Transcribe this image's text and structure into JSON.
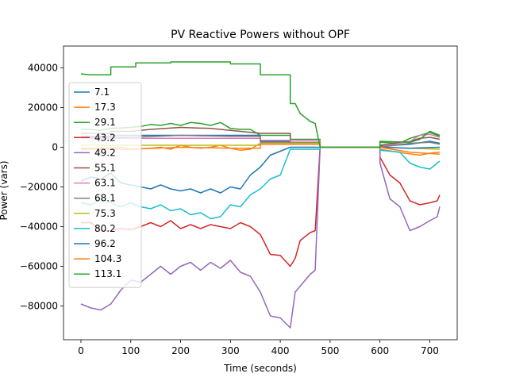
{
  "chart_data": {
    "type": "line",
    "title": "PV Reactive Powers without OPF",
    "xlabel": "Time (seconds)",
    "ylabel": "Power (vars)",
    "xlim": [
      -35,
      755
    ],
    "ylim": [
      -97000,
      51000
    ],
    "xticks": [
      0,
      100,
      200,
      300,
      400,
      500,
      600,
      700
    ],
    "yticks": [
      -80000,
      -60000,
      -40000,
      -20000,
      0,
      20000,
      40000
    ],
    "xtick_labels": [
      "0",
      "100",
      "200",
      "300",
      "400",
      "500",
      "600",
      "700"
    ],
    "ytick_labels": [
      "−80000",
      "−60000",
      "−40000",
      "−20000",
      "0",
      "20000",
      "40000"
    ],
    "grid": false,
    "legend_position": "upper-left",
    "series": [
      {
        "name": "7.1",
        "color": "#1f77b4",
        "points": [
          [
            0,
            5500
          ],
          [
            60,
            5500
          ],
          [
            60,
            6000
          ],
          [
            360,
            6000
          ],
          [
            360,
            3000
          ],
          [
            420,
            3000
          ],
          [
            420,
            1500
          ],
          [
            480,
            1500
          ],
          [
            480,
            0
          ],
          [
            600,
            0
          ],
          [
            600,
            500
          ],
          [
            660,
            1500
          ],
          [
            700,
            3000
          ],
          [
            720,
            2000
          ]
        ]
      },
      {
        "name": "17.3",
        "color": "#ff7f0e",
        "points": [
          [
            0,
            -500
          ],
          [
            50,
            -500
          ],
          [
            80,
            0
          ],
          [
            100,
            -1000
          ],
          [
            140,
            -500
          ],
          [
            160,
            0
          ],
          [
            180,
            -1000
          ],
          [
            200,
            1000
          ],
          [
            220,
            0
          ],
          [
            240,
            -500
          ],
          [
            260,
            0
          ],
          [
            280,
            1000
          ],
          [
            300,
            -500
          ],
          [
            320,
            -1500
          ],
          [
            340,
            -1000
          ],
          [
            360,
            2000
          ],
          [
            400,
            2000
          ],
          [
            420,
            2500
          ],
          [
            480,
            2500
          ],
          [
            480,
            0
          ],
          [
            600,
            0
          ],
          [
            600,
            -1000
          ],
          [
            650,
            -3000
          ],
          [
            680,
            -4000
          ],
          [
            700,
            -3000
          ],
          [
            720,
            -2500
          ]
        ]
      },
      {
        "name": "29.1",
        "color": "#2ca02c",
        "points": [
          [
            0,
            9000
          ],
          [
            20,
            9000
          ],
          [
            40,
            8500
          ],
          [
            60,
            9500
          ],
          [
            100,
            10000
          ],
          [
            120,
            10500
          ],
          [
            140,
            11500
          ],
          [
            160,
            11000
          ],
          [
            180,
            12000
          ],
          [
            200,
            11000
          ],
          [
            220,
            12500
          ],
          [
            240,
            12000
          ],
          [
            260,
            11000
          ],
          [
            280,
            12500
          ],
          [
            300,
            9500
          ],
          [
            320,
            9000
          ],
          [
            340,
            9000
          ],
          [
            360,
            6000
          ],
          [
            420,
            6000
          ],
          [
            420,
            4000
          ],
          [
            480,
            4000
          ],
          [
            480,
            0
          ],
          [
            600,
            0
          ],
          [
            600,
            2500
          ],
          [
            640,
            2000
          ],
          [
            660,
            4500
          ],
          [
            680,
            6000
          ],
          [
            700,
            7500
          ],
          [
            720,
            5500
          ]
        ]
      },
      {
        "name": "43.2",
        "color": "#d62728",
        "points": [
          [
            0,
            -38000
          ],
          [
            20,
            -38000
          ],
          [
            40,
            -42000
          ],
          [
            60,
            -42000
          ],
          [
            80,
            -41000
          ],
          [
            100,
            -41500
          ],
          [
            120,
            -40000
          ],
          [
            140,
            -38000
          ],
          [
            160,
            -40000
          ],
          [
            180,
            -37000
          ],
          [
            200,
            -41000
          ],
          [
            220,
            -39000
          ],
          [
            240,
            -41000
          ],
          [
            260,
            -39000
          ],
          [
            280,
            -40000
          ],
          [
            300,
            -41000
          ],
          [
            320,
            -38000
          ],
          [
            340,
            -40000
          ],
          [
            360,
            -44000
          ],
          [
            380,
            -54000
          ],
          [
            400,
            -54500
          ],
          [
            420,
            -60000
          ],
          [
            430,
            -56000
          ],
          [
            440,
            -47000
          ],
          [
            460,
            -43000
          ],
          [
            470,
            -42000
          ],
          [
            480,
            0
          ],
          [
            600,
            0
          ],
          [
            600,
            -5000
          ],
          [
            620,
            -14000
          ],
          [
            640,
            -18000
          ],
          [
            660,
            -27000
          ],
          [
            680,
            -29000
          ],
          [
            700,
            -28000
          ],
          [
            715,
            -27000
          ],
          [
            720,
            -24000
          ]
        ]
      },
      {
        "name": "49.2",
        "color": "#9467bd",
        "points": [
          [
            0,
            -79000
          ],
          [
            20,
            -81000
          ],
          [
            40,
            -82000
          ],
          [
            60,
            -79000
          ],
          [
            80,
            -72000
          ],
          [
            100,
            -67000
          ],
          [
            120,
            -68000
          ],
          [
            140,
            -64000
          ],
          [
            160,
            -60000
          ],
          [
            180,
            -64000
          ],
          [
            200,
            -60000
          ],
          [
            220,
            -58000
          ],
          [
            240,
            -62000
          ],
          [
            260,
            -58000
          ],
          [
            280,
            -61000
          ],
          [
            300,
            -57000
          ],
          [
            320,
            -63000
          ],
          [
            340,
            -65000
          ],
          [
            360,
            -73000
          ],
          [
            380,
            -85000
          ],
          [
            400,
            -86000
          ],
          [
            420,
            -91000
          ],
          [
            430,
            -73000
          ],
          [
            440,
            -70000
          ],
          [
            460,
            -64000
          ],
          [
            470,
            -62000
          ],
          [
            480,
            0
          ],
          [
            600,
            0
          ],
          [
            600,
            -8000
          ],
          [
            620,
            -26000
          ],
          [
            640,
            -30000
          ],
          [
            660,
            -42000
          ],
          [
            680,
            -40000
          ],
          [
            700,
            -37000
          ],
          [
            715,
            -35000
          ],
          [
            720,
            -30000
          ]
        ]
      },
      {
        "name": "55.1",
        "color": "#8c564b",
        "points": [
          [
            0,
            7000
          ],
          [
            60,
            7000
          ],
          [
            60,
            8000
          ],
          [
            100,
            8000
          ],
          [
            140,
            9000
          ],
          [
            200,
            10000
          ],
          [
            260,
            9500
          ],
          [
            300,
            8500
          ],
          [
            360,
            7000
          ],
          [
            420,
            7000
          ],
          [
            420,
            1500
          ],
          [
            480,
            1500
          ],
          [
            480,
            0
          ],
          [
            600,
            0
          ],
          [
            600,
            1000
          ],
          [
            660,
            3000
          ],
          [
            680,
            4500
          ],
          [
            700,
            5000
          ],
          [
            720,
            4000
          ]
        ]
      },
      {
        "name": "63.1",
        "color": "#e377c2",
        "points": [
          [
            0,
            4500
          ],
          [
            360,
            4500
          ],
          [
            360,
            3500
          ],
          [
            480,
            3500
          ],
          [
            480,
            0
          ],
          [
            600,
            0
          ],
          [
            660,
            3000
          ],
          [
            680,
            6000
          ],
          [
            700,
            6500
          ],
          [
            720,
            5000
          ]
        ]
      },
      {
        "name": "68.1",
        "color": "#7f7f7f",
        "points": [
          [
            0,
            5000
          ],
          [
            100,
            5000
          ],
          [
            200,
            6000
          ],
          [
            300,
            5500
          ],
          [
            360,
            5500
          ],
          [
            360,
            2500
          ],
          [
            480,
            2500
          ],
          [
            480,
            0
          ],
          [
            600,
            0
          ],
          [
            660,
            2000
          ],
          [
            700,
            2500
          ],
          [
            720,
            1500
          ]
        ]
      },
      {
        "name": "75.3",
        "color": "#bcbd22",
        "points": [
          [
            0,
            1000
          ],
          [
            360,
            1000
          ],
          [
            360,
            2000
          ],
          [
            480,
            2000
          ],
          [
            480,
            0
          ],
          [
            600,
            0
          ],
          [
            660,
            -500
          ],
          [
            720,
            -1000
          ]
        ]
      },
      {
        "name": "80.2",
        "color": "#17becf",
        "points": [
          [
            0,
            -28000
          ],
          [
            20,
            -29000
          ],
          [
            40,
            -26000
          ],
          [
            60,
            -28000
          ],
          [
            80,
            -30000
          ],
          [
            100,
            -28000
          ],
          [
            120,
            -30000
          ],
          [
            140,
            -31000
          ],
          [
            160,
            -29000
          ],
          [
            180,
            -32000
          ],
          [
            200,
            -31000
          ],
          [
            220,
            -34000
          ],
          [
            240,
            -33000
          ],
          [
            260,
            -36000
          ],
          [
            280,
            -35000
          ],
          [
            300,
            -29000
          ],
          [
            320,
            -30000
          ],
          [
            340,
            -24000
          ],
          [
            360,
            -21000
          ],
          [
            380,
            -16000
          ],
          [
            400,
            -14000
          ],
          [
            420,
            -1000
          ],
          [
            480,
            -1000
          ],
          [
            480,
            0
          ],
          [
            600,
            0
          ],
          [
            600,
            -1500
          ],
          [
            640,
            -2500
          ],
          [
            660,
            -8000
          ],
          [
            680,
            -10000
          ],
          [
            700,
            -11000
          ],
          [
            715,
            -8000
          ],
          [
            720,
            -7000
          ]
        ]
      },
      {
        "name": "96.2",
        "color": "#1f77b4",
        "points": [
          [
            0,
            -17000
          ],
          [
            20,
            -15000
          ],
          [
            40,
            -16000
          ],
          [
            60,
            -13000
          ],
          [
            80,
            -18000
          ],
          [
            100,
            -19000
          ],
          [
            120,
            -20000
          ],
          [
            140,
            -21000
          ],
          [
            160,
            -19000
          ],
          [
            180,
            -21000
          ],
          [
            200,
            -22000
          ],
          [
            220,
            -21000
          ],
          [
            240,
            -23000
          ],
          [
            260,
            -21000
          ],
          [
            280,
            -23000
          ],
          [
            300,
            -20000
          ],
          [
            320,
            -21000
          ],
          [
            340,
            -14000
          ],
          [
            360,
            -10000
          ],
          [
            380,
            -4000
          ],
          [
            400,
            -2000
          ],
          [
            420,
            0
          ],
          [
            480,
            0
          ],
          [
            600,
            0
          ],
          [
            660,
            -500
          ],
          [
            720,
            0
          ]
        ]
      },
      {
        "name": "104.3",
        "color": "#ff7f0e",
        "points": [
          [
            0,
            -1000
          ],
          [
            100,
            -1000
          ],
          [
            200,
            0
          ],
          [
            300,
            -500
          ],
          [
            360,
            -500
          ],
          [
            360,
            1500
          ],
          [
            420,
            1500
          ],
          [
            480,
            1500
          ],
          [
            480,
            0
          ],
          [
            600,
            0
          ],
          [
            660,
            -2500
          ],
          [
            720,
            -3500
          ]
        ]
      },
      {
        "name": "113.1",
        "color": "#2ca02c",
        "points": [
          [
            0,
            37000
          ],
          [
            15,
            36500
          ],
          [
            60,
            36500
          ],
          [
            60,
            40500
          ],
          [
            110,
            40500
          ],
          [
            110,
            42500
          ],
          [
            180,
            42500
          ],
          [
            180,
            43000
          ],
          [
            300,
            43000
          ],
          [
            300,
            42000
          ],
          [
            360,
            42000
          ],
          [
            360,
            36500
          ],
          [
            420,
            36500
          ],
          [
            420,
            22000
          ],
          [
            430,
            22000
          ],
          [
            440,
            17000
          ],
          [
            460,
            13000
          ],
          [
            470,
            12000
          ],
          [
            480,
            0
          ],
          [
            600,
            0
          ],
          [
            600,
            3000
          ],
          [
            660,
            2500
          ],
          [
            680,
            4000
          ],
          [
            700,
            8000
          ],
          [
            720,
            6000
          ]
        ]
      }
    ]
  }
}
